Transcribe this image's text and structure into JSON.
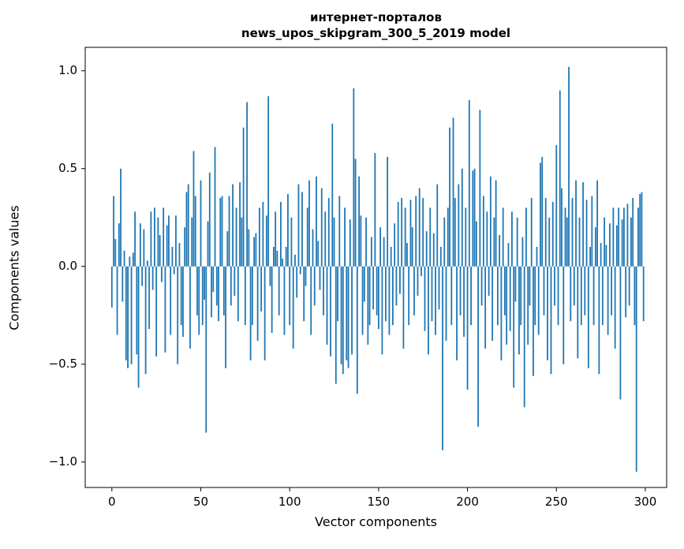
{
  "chart_data": {
    "type": "bar",
    "title_lines": [
      "интернет-порталов",
      "news_upos_skipgram_300_5_2019 model"
    ],
    "xlabel": "Vector components",
    "ylabel": "Components values",
    "bar_color": "#1f77b4",
    "grid": false,
    "legend": "none",
    "xlim": [
      -15,
      312
    ],
    "ylim": [
      -1.13,
      1.12
    ],
    "xticks": [
      0,
      50,
      100,
      150,
      200,
      250,
      300
    ],
    "yticks": [
      -1.0,
      -0.5,
      0.0,
      0.5,
      1.0
    ],
    "x_start": 0,
    "values": [
      -0.21,
      0.36,
      0.14,
      -0.35,
      0.22,
      0.5,
      -0.18,
      0.08,
      -0.48,
      -0.52,
      0.05,
      -0.5,
      0.07,
      0.28,
      -0.45,
      -0.62,
      0.22,
      -0.1,
      0.19,
      -0.55,
      0.03,
      -0.32,
      0.28,
      -0.12,
      0.3,
      -0.46,
      0.25,
      0.16,
      -0.08,
      0.3,
      -0.44,
      0.21,
      0.26,
      -0.35,
      0.1,
      -0.04,
      0.26,
      -0.5,
      0.12,
      -0.3,
      -0.36,
      0.2,
      0.38,
      0.42,
      -0.42,
      0.25,
      0.59,
      0.36,
      -0.25,
      -0.35,
      0.44,
      -0.3,
      -0.17,
      -0.85,
      0.23,
      0.48,
      -0.26,
      -0.13,
      0.61,
      -0.2,
      -0.28,
      0.35,
      0.36,
      -0.25,
      -0.52,
      0.18,
      0.36,
      -0.2,
      0.42,
      -0.15,
      0.3,
      -0.28,
      0.43,
      0.25,
      0.71,
      -0.3,
      0.84,
      0.19,
      -0.48,
      -0.3,
      0.15,
      0.17,
      -0.38,
      0.3,
      -0.23,
      0.33,
      -0.48,
      0.26,
      0.87,
      -0.1,
      -0.34,
      0.1,
      0.28,
      0.08,
      -0.25,
      0.33,
      0.04,
      -0.35,
      0.1,
      0.37,
      -0.3,
      0.25,
      -0.42,
      0.06,
      -0.16,
      0.42,
      -0.04,
      0.38,
      -0.28,
      -0.1,
      0.3,
      0.44,
      -0.35,
      0.19,
      -0.2,
      0.46,
      0.13,
      -0.12,
      0.4,
      -0.25,
      0.28,
      -0.4,
      0.35,
      -0.46,
      0.73,
      0.25,
      -0.6,
      -0.28,
      0.36,
      -0.5,
      -0.55,
      0.3,
      -0.48,
      -0.52,
      0.24,
      -0.45,
      0.91,
      0.55,
      -0.65,
      0.46,
      0.26,
      -0.35,
      -0.18,
      0.25,
      -0.4,
      -0.3,
      0.15,
      -0.22,
      0.58,
      -0.25,
      -0.32,
      0.2,
      -0.45,
      0.15,
      -0.28,
      0.56,
      -0.35,
      0.1,
      -0.3,
      0.22,
      -0.2,
      0.33,
      -0.14,
      0.35,
      -0.42,
      0.3,
      0.12,
      -0.3,
      0.34,
      0.2,
      -0.25,
      0.36,
      -0.15,
      0.4,
      -0.05,
      0.35,
      -0.33,
      0.18,
      -0.45,
      0.3,
      -0.28,
      0.17,
      -0.35,
      0.42,
      -0.22,
      0.1,
      -0.94,
      0.25,
      -0.38,
      0.3,
      0.71,
      -0.3,
      0.76,
      0.35,
      -0.48,
      0.42,
      -0.25,
      0.5,
      -0.36,
      0.3,
      -0.63,
      0.85,
      -0.3,
      0.49,
      0.5,
      0.23,
      -0.82,
      0.8,
      -0.2,
      0.36,
      -0.42,
      0.28,
      -0.15,
      0.46,
      -0.38,
      0.25,
      0.44,
      -0.3,
      0.16,
      -0.48,
      0.3,
      -0.25,
      -0.4,
      0.12,
      -0.33,
      0.28,
      -0.62,
      -0.18,
      0.25,
      -0.45,
      -0.3,
      0.15,
      -0.72,
      0.3,
      -0.4,
      -0.2,
      0.35,
      -0.56,
      -0.3,
      0.1,
      -0.35,
      0.53,
      0.56,
      -0.25,
      0.35,
      -0.48,
      0.25,
      -0.55,
      0.33,
      -0.2,
      0.62,
      -0.3,
      0.9,
      0.4,
      -0.5,
      0.3,
      0.25,
      1.02,
      -0.28,
      0.35,
      -0.2,
      0.44,
      -0.47,
      0.25,
      -0.3,
      0.43,
      -0.25,
      0.34,
      -0.52,
      0.1,
      0.36,
      -0.3,
      0.2,
      0.44,
      -0.55,
      0.12,
      -0.3,
      0.25,
      0.11,
      -0.35,
      0.22,
      -0.25,
      0.3,
      -0.42,
      0.21,
      0.3,
      -0.68,
      0.24,
      0.3,
      -0.26,
      0.32,
      -0.2,
      0.25,
      0.35,
      -0.3,
      -1.05,
      0.3,
      0.37,
      0.38,
      -0.28
    ]
  }
}
